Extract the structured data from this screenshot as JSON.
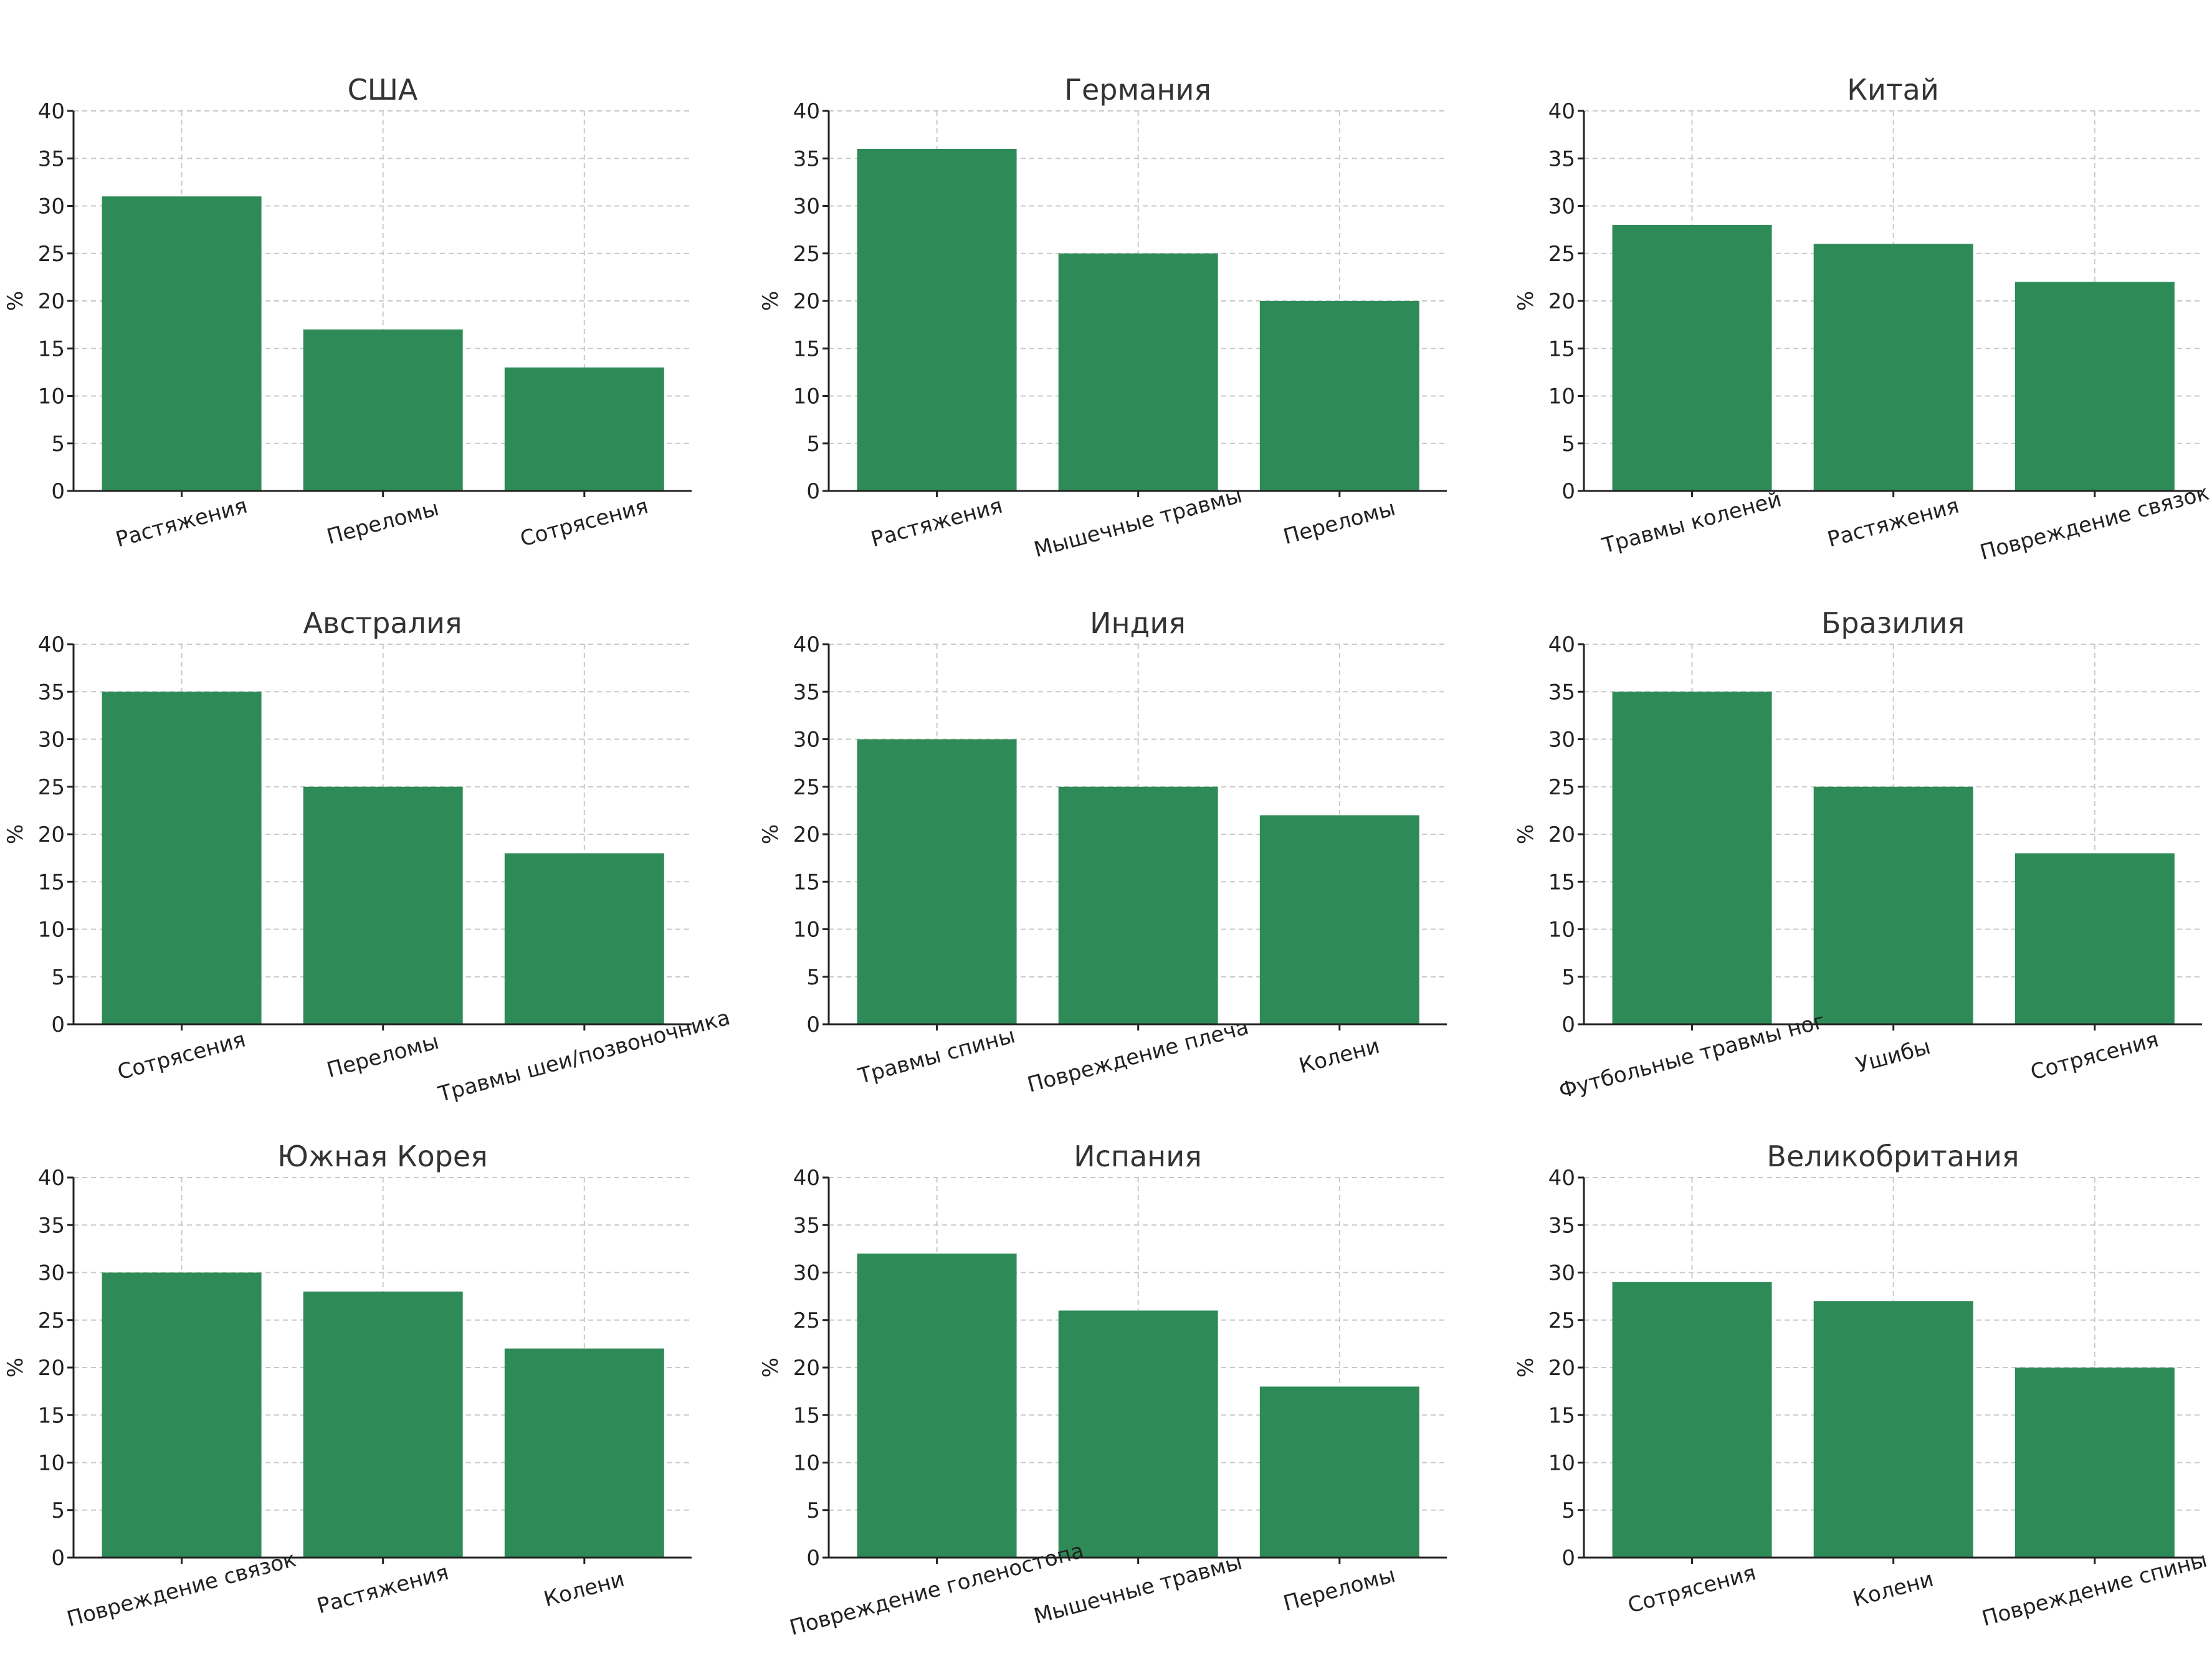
{
  "chart_data": [
    {
      "type": "bar",
      "title": "США",
      "categories": [
        "Растяжения",
        "Переломы",
        "Сотрясения"
      ],
      "values": [
        31,
        17,
        13
      ],
      "ylabel": "%",
      "ylim": [
        0,
        40
      ],
      "yticks": [
        "0",
        "5",
        "10",
        "15",
        "20",
        "25",
        "30",
        "35",
        "40"
      ],
      "color": "#2e8b57",
      "grid": true
    },
    {
      "type": "bar",
      "title": "Германия",
      "categories": [
        "Растяжения",
        "Мышечные травмы",
        "Переломы"
      ],
      "values": [
        36,
        25,
        20
      ],
      "ylabel": "%",
      "ylim": [
        0,
        40
      ],
      "yticks": [
        "0",
        "5",
        "10",
        "15",
        "20",
        "25",
        "30",
        "35",
        "40"
      ],
      "color": "#2e8b57",
      "grid": true
    },
    {
      "type": "bar",
      "title": "Китай",
      "categories": [
        "Травмы коленей",
        "Растяжения",
        "Повреждение связок"
      ],
      "values": [
        28,
        26,
        22
      ],
      "ylabel": "%",
      "ylim": [
        0,
        40
      ],
      "yticks": [
        "0",
        "5",
        "10",
        "15",
        "20",
        "25",
        "30",
        "35",
        "40"
      ],
      "color": "#2e8b57",
      "grid": true
    },
    {
      "type": "bar",
      "title": "Австралия",
      "categories": [
        "Сотрясения",
        "Переломы",
        "Травмы шеи/позвоночника"
      ],
      "values": [
        35,
        25,
        18
      ],
      "ylabel": "%",
      "ylim": [
        0,
        40
      ],
      "yticks": [
        "0",
        "5",
        "10",
        "15",
        "20",
        "25",
        "30",
        "35",
        "40"
      ],
      "color": "#2e8b57",
      "grid": true
    },
    {
      "type": "bar",
      "title": "Индия",
      "categories": [
        "Травмы спины",
        "Повреждение плеча",
        "Колени"
      ],
      "values": [
        30,
        25,
        22
      ],
      "ylabel": "%",
      "ylim": [
        0,
        40
      ],
      "yticks": [
        "0",
        "5",
        "10",
        "15",
        "20",
        "25",
        "30",
        "35",
        "40"
      ],
      "color": "#2e8b57",
      "grid": true
    },
    {
      "type": "bar",
      "title": "Бразилия",
      "categories": [
        "Футбольные травмы ног",
        "Ушибы",
        "Сотрясения"
      ],
      "values": [
        35,
        25,
        18
      ],
      "ylabel": "%",
      "ylim": [
        0,
        40
      ],
      "yticks": [
        "0",
        "5",
        "10",
        "15",
        "20",
        "25",
        "30",
        "35",
        "40"
      ],
      "color": "#2e8b57",
      "grid": true
    },
    {
      "type": "bar",
      "title": "Южная Корея",
      "categories": [
        "Повреждение связок",
        "Растяжения",
        "Колени"
      ],
      "values": [
        30,
        28,
        22
      ],
      "ylabel": "%",
      "ylim": [
        0,
        40
      ],
      "yticks": [
        "0",
        "5",
        "10",
        "15",
        "20",
        "25",
        "30",
        "35",
        "40"
      ],
      "color": "#2e8b57",
      "grid": true
    },
    {
      "type": "bar",
      "title": "Испания",
      "categories": [
        "Повреждение голеностопа",
        "Мышечные травмы",
        "Переломы"
      ],
      "values": [
        32,
        26,
        18
      ],
      "ylabel": "%",
      "ylim": [
        0,
        40
      ],
      "yticks": [
        "0",
        "5",
        "10",
        "15",
        "20",
        "25",
        "30",
        "35",
        "40"
      ],
      "color": "#2e8b57",
      "grid": true
    },
    {
      "type": "bar",
      "title": "Великобритания",
      "categories": [
        "Сотрясения",
        "Колени",
        "Повреждение спины"
      ],
      "values": [
        29,
        27,
        20
      ],
      "ylabel": "%",
      "ylim": [
        0,
        40
      ],
      "yticks": [
        "0",
        "5",
        "10",
        "15",
        "20",
        "25",
        "30",
        "35",
        "40"
      ],
      "color": "#2e8b57",
      "grid": true
    }
  ]
}
